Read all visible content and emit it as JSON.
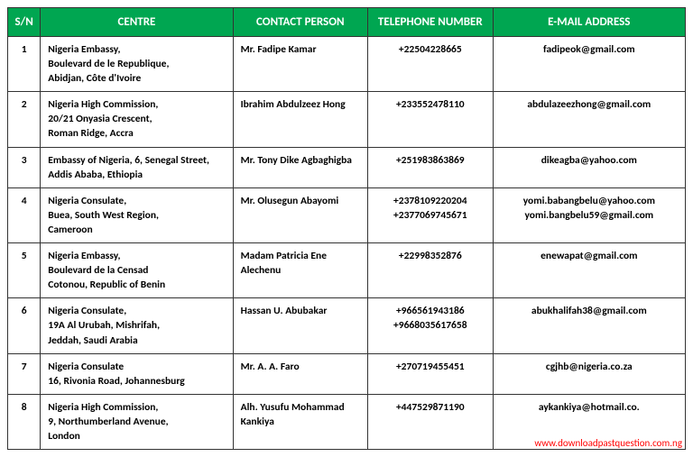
{
  "table": {
    "header_bg": "#00a651",
    "header_fg": "#ffffff",
    "border_color": "#333333",
    "columns": [
      {
        "key": "sn",
        "label": "S/N"
      },
      {
        "key": "centre",
        "label": "CENTRE"
      },
      {
        "key": "contact",
        "label": "CONTACT PERSON"
      },
      {
        "key": "tel",
        "label": "TELEPHONE NUMBER"
      },
      {
        "key": "email",
        "label": "E-MAIL ADDRESS"
      }
    ],
    "rows": [
      {
        "sn": "1",
        "centre": "Nigeria Embassy,\nBoulevard de le Republique,\nAbidjan, Côte d'Ivoire",
        "contact": " Mr. Fadipe Kamar",
        "tel": "+22504228665",
        "email": "fadipeok@gmail.com"
      },
      {
        "sn": "2",
        "centre": " Nigeria High Commission,\n 20/21 Onyasia Crescent,\nRoman Ridge, Accra",
        "contact": "Ibrahim Abdulzeez Hong",
        "tel": "+233552478110",
        "email": "abdulazeezhong@gmail.com"
      },
      {
        "sn": "3",
        "centre": " Embassy of Nigeria, 6, Senegal Street, Addis Ababa, Ethiopia",
        "contact": " Mr. Tony Dike Agbaghigba",
        "tel": "+251983863869",
        "email": "dikeagba@yahoo.com"
      },
      {
        "sn": "4",
        "centre": " Nigeria  Consulate,\nBuea, South West Region,\nCameroon",
        "contact": " Mr. Olusegun Abayomi",
        "tel": "+2378109220204\n+2377069745671",
        "email": "yomi.babangbelu@yahoo.com\nyomi.bangbelu59@gmail.com"
      },
      {
        "sn": "5",
        "centre": "Nigeria Embassy,\nBoulevard de la Censad\nCotonou, Republic of Benin",
        "contact": "Madam Patricia  Ene Alechenu",
        "tel": "+22998352876",
        "email": "enewapat@gmail.com"
      },
      {
        "sn": "6",
        "centre": " Nigeria  Consulate,\n19A Al Urubah, Mishrifah,\nJeddah, Saudi Arabia",
        "contact": "Hassan U. Abubakar",
        "tel": "+966561943186\n+9668035617658",
        "email": "abukhalifah38@gmail.com"
      },
      {
        "sn": "7",
        "centre": " Nigeria  Consulate\n16, Rivonia Road, Johannesburg",
        "contact": "Mr. A. A. Faro",
        "tel": "+270719455451",
        "email": "cgjhb@nigeria.co.za"
      },
      {
        "sn": "8",
        "centre": " Nigeria High Commission,\n9, Northumberland Avenue,\nLondon",
        "contact": "Alh. Yusufu Mohammad Kankiya",
        "tel": "+447529871190",
        "email": "aykankiya@hotmail.co."
      }
    ]
  },
  "watermark": "www.downloadpastquestion.com.ng"
}
